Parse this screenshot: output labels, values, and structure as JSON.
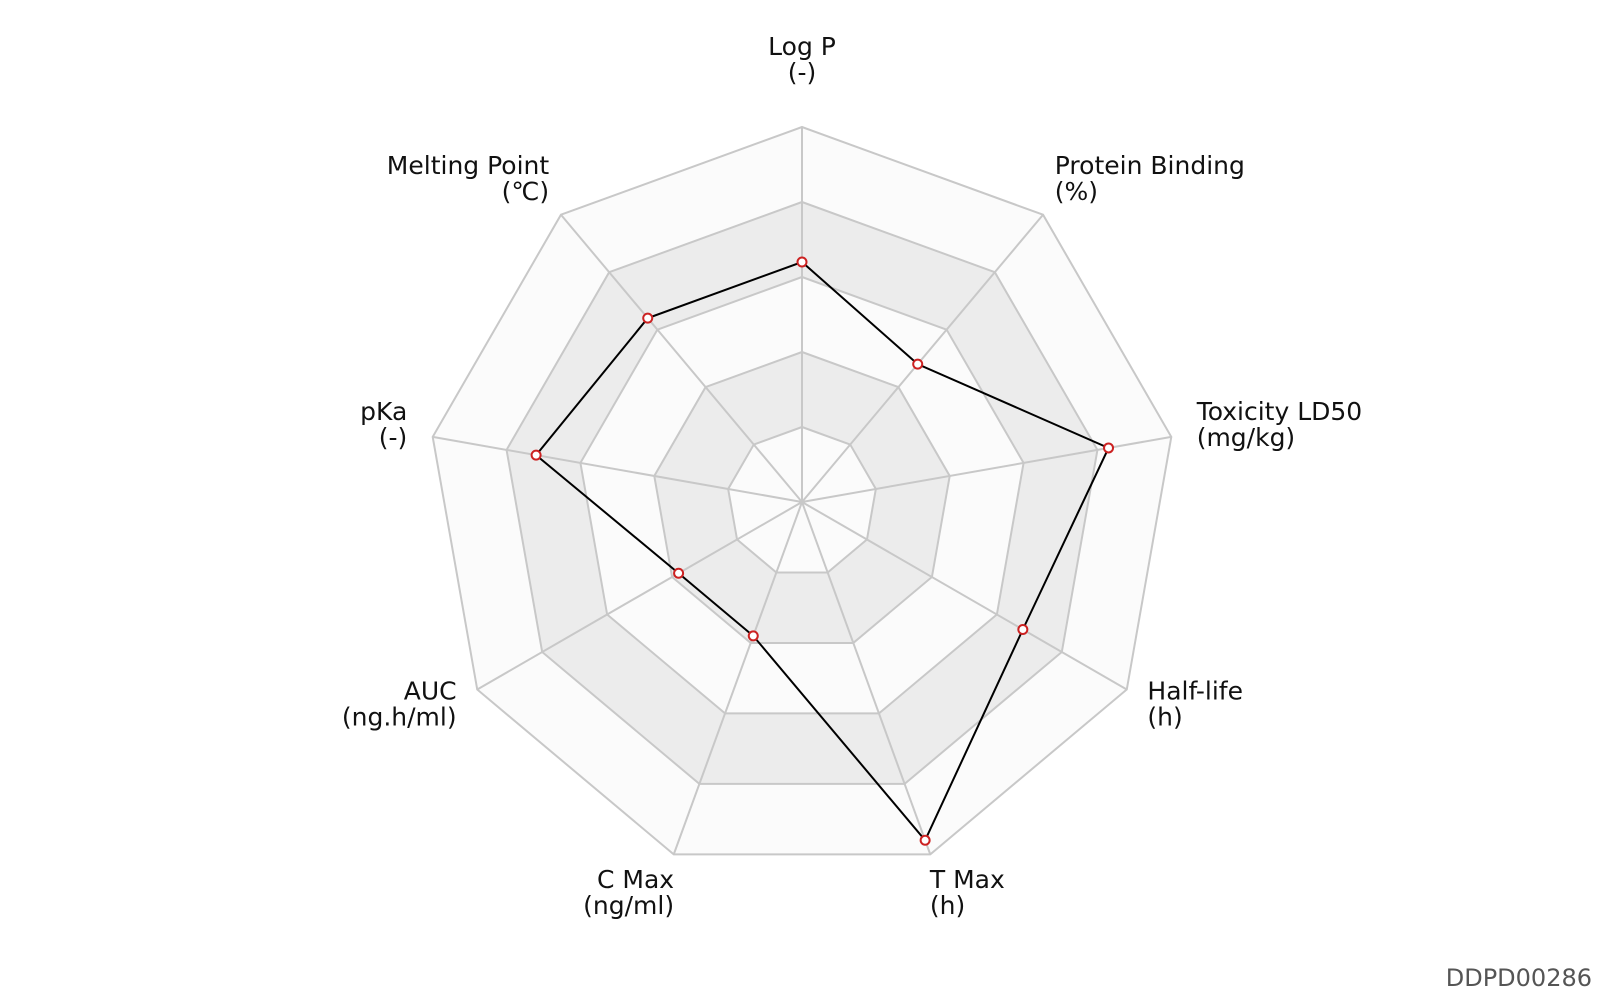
{
  "chart_data": {
    "type": "radar",
    "axes": [
      {
        "name": "Log P",
        "unit": "(-)"
      },
      {
        "name": "Protein Binding",
        "unit": "(%)"
      },
      {
        "name": "Toxicity LD50",
        "unit": "(mg/kg)"
      },
      {
        "name": "Half-life",
        "unit": "(h)"
      },
      {
        "name": "T Max",
        "unit": "(h)"
      },
      {
        "name": "C Max",
        "unit": "(ng/ml)"
      },
      {
        "name": "AUC",
        "unit": "(ng.h/ml)"
      },
      {
        "name": "pKa",
        "unit": "(-)"
      },
      {
        "name": "Melting Point",
        "unit": "(℃)"
      }
    ],
    "values": [
      0.64,
      0.48,
      0.83,
      0.68,
      0.96,
      0.38,
      0.38,
      0.72,
      0.64
    ],
    "rlim": [
      0,
      1
    ],
    "rings": 5,
    "colors": {
      "line": "#000000",
      "marker_edge": "#cc2222",
      "marker_fill": "#ffffff",
      "grid": "#c8c8c8",
      "band_dark": "#ececec",
      "band_light": "#fbfbfb"
    }
  },
  "watermark": "DDPD00286"
}
